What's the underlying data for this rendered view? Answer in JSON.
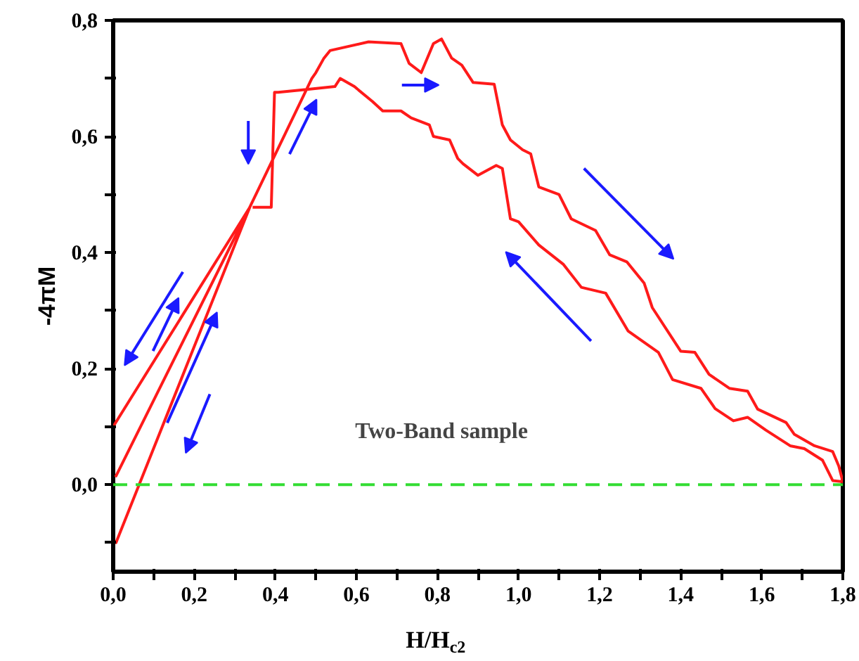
{
  "chart_data": {
    "type": "line",
    "xlabel": "H/H$_{c2}$",
    "ylabel": "-4πM",
    "annotations": [
      "Two-Band sample"
    ],
    "xlim": [
      0,
      1.8
    ],
    "ylim": [
      -0.15,
      0.8
    ],
    "xticks": [
      {
        "value": 0,
        "label": "0,0"
      },
      {
        "value": 0.1,
        "label": null
      },
      {
        "value": 0.2,
        "label": "0,2"
      },
      {
        "value": 0.3,
        "label": null
      },
      {
        "value": 0.4,
        "label": "0,4"
      },
      {
        "value": 0.5,
        "label": null
      },
      {
        "value": 0.6,
        "label": "0,6"
      },
      {
        "value": 0.7,
        "label": null
      },
      {
        "value": 0.8,
        "label": "0,8"
      },
      {
        "value": 0.9,
        "label": null
      },
      {
        "value": 1.0,
        "label": "1,0"
      },
      {
        "value": 1.1,
        "label": null
      },
      {
        "value": 1.2,
        "label": "1,2"
      },
      {
        "value": 1.3,
        "label": null
      },
      {
        "value": 1.4,
        "label": "1,4"
      },
      {
        "value": 1.5,
        "label": null
      },
      {
        "value": 1.6,
        "label": "1,6"
      },
      {
        "value": 1.7,
        "label": null
      },
      {
        "value": 1.8,
        "label": "1,8"
      }
    ],
    "yticks": [
      {
        "value": -0.1,
        "label": null
      },
      {
        "value": 0,
        "label": "0,0"
      },
      {
        "value": 0.1,
        "label": null
      },
      {
        "value": 0.2,
        "label": "0,2"
      },
      {
        "value": 0.3,
        "label": null
      },
      {
        "value": 0.4,
        "label": "0,4"
      },
      {
        "value": 0.5,
        "label": null
      },
      {
        "value": 0.6,
        "label": "0,6"
      },
      {
        "value": 0.7,
        "label": null
      },
      {
        "value": 0.8,
        "label": "0,8"
      }
    ],
    "grid": false,
    "marker": "none",
    "line_style": "solid",
    "ref_lines": [
      {
        "axis": "y",
        "value": 0,
        "label": null,
        "color": "#33dd33",
        "line_style": "dashed"
      }
    ],
    "series": [
      {
        "color": "#ff1a1a",
        "x": [
          0,
          0.337,
          0.007,
          0.337,
          0.007,
          0.337,
          0.49,
          0.5,
          0.52,
          0.535,
          0.63,
          0.71,
          0.73,
          0.76,
          0.79,
          0.81,
          0.835,
          0.86,
          0.888,
          0.94,
          0.96,
          0.98,
          1.01,
          1.03,
          1.05,
          1.1,
          1.13,
          1.19,
          1.225,
          1.267,
          1.31,
          1.33,
          1.4,
          1.435,
          1.47,
          1.52,
          1.565,
          1.59,
          1.66,
          1.68,
          1.73,
          1.775,
          1.79,
          1.8,
          1.775,
          1.75,
          1.705,
          1.67,
          1.61,
          1.565,
          1.53,
          1.485,
          1.45,
          1.38,
          1.345,
          1.27,
          1.215,
          1.155,
          1.11,
          1.05,
          1.0,
          0.98,
          0.96,
          0.945,
          0.9,
          0.863,
          0.85,
          0.83,
          0.79,
          0.78,
          0.735,
          0.71,
          0.665,
          0.64,
          0.595,
          0.56,
          0.547,
          0.477,
          0.407,
          0.398,
          0.39,
          0.344
        ],
        "values": [
          0.1,
          0.478,
          0.015,
          0.478,
          -0.1,
          0.478,
          0.7,
          0.71,
          0.735,
          0.748,
          0.763,
          0.76,
          0.726,
          0.71,
          0.76,
          0.768,
          0.735,
          0.723,
          0.693,
          0.69,
          0.62,
          0.594,
          0.577,
          0.57,
          0.513,
          0.5,
          0.458,
          0.438,
          0.396,
          0.384,
          0.347,
          0.305,
          0.23,
          0.228,
          0.19,
          0.166,
          0.161,
          0.13,
          0.107,
          0.087,
          0.067,
          0.057,
          0.032,
          0.005,
          0.007,
          0.042,
          0.062,
          0.067,
          0.094,
          0.116,
          0.11,
          0.131,
          0.166,
          0.181,
          0.228,
          0.265,
          0.33,
          0.34,
          0.38,
          0.413,
          0.453,
          0.458,
          0.545,
          0.55,
          0.533,
          0.553,
          0.562,
          0.594,
          0.6,
          0.62,
          0.632,
          0.644,
          0.644,
          0.66,
          0.686,
          0.7,
          0.686,
          0.681,
          0.676,
          0.676,
          0.478,
          0.478
        ]
      }
    ]
  }
}
